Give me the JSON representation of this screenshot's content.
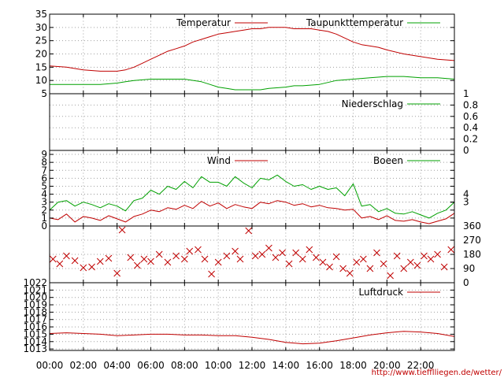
{
  "chart_data": {
    "type": "line",
    "x_ticks": [
      "00:00",
      "02:00",
      "04:00",
      "06:00",
      "08:00",
      "10:00",
      "12:00",
      "14:00",
      "16:00",
      "18:00",
      "20:00",
      "22:00"
    ],
    "credit": "http://www.tiefflliegen.de/wetter/",
    "colors": {
      "red": "#c00000",
      "green": "#00a000",
      "grid": "#a0a0a0"
    },
    "panels": [
      {
        "id": "temperature",
        "y_ticks_left": [
          "5",
          "10",
          "15",
          "20",
          "25",
          "30",
          "35"
        ],
        "ylim": [
          5,
          35
        ],
        "legend": [
          "Temperatur",
          "Taupunkttemperatur"
        ],
        "series": [
          {
            "name": "Temperatur",
            "color": "red",
            "x": [
              0,
              1,
              2,
              3,
              3.5,
              4,
              4.5,
              5,
              5.5,
              6,
              6.5,
              7,
              7.5,
              8,
              8.5,
              9,
              9.5,
              10,
              10.5,
              11,
              11.5,
              12,
              12.5,
              13,
              13.5,
              14,
              14.5,
              15,
              15.5,
              16,
              16.5,
              17,
              17.5,
              18,
              18.5,
              19,
              19.5,
              20,
              21,
              22,
              23,
              24
            ],
            "y": [
              15.5,
              15,
              14,
              13.5,
              13.5,
              13.5,
              14,
              15,
              16.5,
              18,
              19.5,
              21,
              22,
              23,
              24.5,
              25.5,
              26.5,
              27.5,
              28,
              28.5,
              29,
              29.5,
              29.5,
              30,
              30,
              30,
              29.5,
              29.5,
              29.5,
              29,
              28.5,
              27.5,
              26,
              24.5,
              23.5,
              23,
              22.5,
              21.5,
              20,
              19,
              18,
              17.5
            ]
          },
          {
            "name": "Taupunkttemperatur",
            "color": "green",
            "x": [
              0,
              1,
              2,
              3,
              4,
              4.5,
              5,
              6,
              7,
              8,
              9,
              9.5,
              10,
              10.5,
              11,
              11.5,
              12,
              12.5,
              13,
              14,
              14.5,
              15,
              16,
              17,
              18,
              19,
              20,
              21,
              22,
              23,
              24
            ],
            "y": [
              8.5,
              8.5,
              8.5,
              8.5,
              9,
              9.5,
              10,
              10.5,
              10.5,
              10.5,
              9.5,
              8.5,
              7.5,
              7,
              6.5,
              6.5,
              6.5,
              6.5,
              7,
              7.5,
              8,
              8,
              8.5,
              10,
              10.5,
              11,
              11.5,
              11.5,
              11,
              11,
              10.5
            ]
          }
        ]
      },
      {
        "id": "precipitation",
        "y_ticks_right": [
          "0",
          "0.2",
          "0.4",
          "0.6",
          "0.8",
          "1"
        ],
        "ylim": [
          0,
          1
        ],
        "legend": [
          "Niederschlag"
        ],
        "series": [
          {
            "name": "Niederschlag",
            "color": "green",
            "x": [
              0,
              24
            ],
            "y": [
              0,
              0
            ]
          }
        ]
      },
      {
        "id": "wind",
        "y_ticks_left": [
          "0",
          "1",
          "2",
          "3",
          "4",
          "5",
          "6",
          "7",
          "8",
          "9"
        ],
        "y_ticks_right": [
          "3",
          "4"
        ],
        "ylim": [
          0,
          9.5
        ],
        "legend": [
          "Wind",
          "Boeen"
        ],
        "series": [
          {
            "name": "Wind",
            "color": "red",
            "x": [
              0,
              0.5,
              1,
              1.5,
              2,
              2.5,
              3,
              3.5,
              4,
              4.5,
              5,
              5.5,
              6,
              6.5,
              7,
              7.5,
              8,
              8.5,
              9,
              9.5,
              10,
              10.5,
              11,
              11.5,
              12,
              12.5,
              13,
              13.5,
              14,
              14.5,
              15,
              15.5,
              16,
              16.5,
              17,
              17.5,
              18,
              18.5,
              19,
              19.5,
              20,
              20.5,
              21,
              21.5,
              22,
              22.5,
              23,
              23.5,
              24
            ],
            "y": [
              1,
              0.8,
              1.5,
              0.5,
              1.2,
              1,
              0.7,
              1.3,
              0.9,
              0.5,
              1.2,
              1.5,
              2,
              1.8,
              2.3,
              2.1,
              2.6,
              2.2,
              3.1,
              2.5,
              2.9,
              2.2,
              2.7,
              2.4,
              2.2,
              3,
              2.8,
              3.2,
              3,
              2.6,
              2.8,
              2.4,
              2.6,
              2.3,
              2.2,
              2,
              2.1,
              1,
              1.2,
              0.8,
              1.3,
              0.7,
              0.6,
              0.8,
              0.5,
              0.3,
              0.6,
              0.9,
              1.6
            ]
          },
          {
            "name": "Boeen",
            "color": "green",
            "x": [
              0,
              0.5,
              1,
              1.5,
              2,
              2.5,
              3,
              3.5,
              4,
              4.5,
              5,
              5.5,
              6,
              6.5,
              7,
              7.5,
              8,
              8.5,
              9,
              9.5,
              10,
              10.5,
              11,
              11.5,
              12,
              12.5,
              13,
              13.5,
              14,
              14.5,
              15,
              15.5,
              16,
              16.5,
              17,
              17.5,
              18,
              18.5,
              19,
              19.5,
              20,
              20.5,
              21,
              21.5,
              22,
              22.5,
              23,
              23.5,
              24
            ],
            "y": [
              2,
              3,
              3.2,
              2.5,
              3,
              2.7,
              2.3,
              2.8,
              2.5,
              1.9,
              3.2,
              3.5,
              4.5,
              4,
              5,
              4.6,
              5.6,
              4.8,
              6.2,
              5.5,
              5.5,
              5,
              6.2,
              5.4,
              4.8,
              6,
              5.8,
              6.4,
              5.6,
              5,
              5.2,
              4.6,
              5,
              4.6,
              4.8,
              3.8,
              5.3,
              2.5,
              2.7,
              1.8,
              2.2,
              1.6,
              1.5,
              1.8,
              1.4,
              1,
              1.6,
              2,
              3
            ]
          }
        ]
      },
      {
        "id": "wind_direction",
        "y_ticks_right": [
          "0",
          "90",
          "180",
          "270",
          "360"
        ],
        "ylim": [
          0,
          360
        ],
        "series": [
          {
            "name": "",
            "color": "red",
            "type": "scatter",
            "x": [
              0.2,
              0.6,
              1,
              1.5,
              2,
              2.5,
              3,
              3.5,
              4,
              4.3,
              4.8,
              5.2,
              5.6,
              6,
              6.5,
              7,
              7.5,
              8,
              8.3,
              8.8,
              9.2,
              9.6,
              10,
              10.5,
              11,
              11.3,
              11.8,
              12.2,
              12.6,
              13,
              13.4,
              13.8,
              14.2,
              14.6,
              15,
              15.4,
              15.8,
              16.2,
              16.6,
              17,
              17.4,
              17.8,
              18.2,
              18.6,
              19,
              19.4,
              19.8,
              20.2,
              20.6,
              21,
              21.4,
              21.8,
              22.2,
              22.6,
              23,
              23.4,
              23.8
            ],
            "y": [
              150,
              120,
              170,
              140,
              95,
              100,
              135,
              155,
              60,
              335,
              160,
              110,
              150,
              135,
              180,
              130,
              170,
              150,
              200,
              210,
              150,
              55,
              130,
              170,
              200,
              150,
              330,
              170,
              180,
              220,
              160,
              190,
              120,
              190,
              150,
              210,
              160,
              130,
              100,
              165,
              90,
              60,
              130,
              150,
              90,
              190,
              120,
              45,
              170,
              90,
              130,
              110,
              170,
              150,
              180,
              100,
              210
            ]
          }
        ]
      },
      {
        "id": "pressure",
        "y_ticks_left": [
          "1013",
          "1014",
          "1015",
          "1016",
          "1017",
          "1018",
          "1019",
          "1020",
          "1021",
          "1022"
        ],
        "ylim": [
          1012.8,
          1022
        ],
        "legend": [
          "Luftdruck"
        ],
        "series": [
          {
            "name": "Luftdruck",
            "color": "red",
            "x": [
              0,
              1,
              2,
              3,
              4,
              5,
              6,
              7,
              8,
              9,
              10,
              11,
              12,
              13,
              14,
              15,
              16,
              17,
              18,
              19,
              20,
              21,
              22,
              23,
              24
            ],
            "y": [
              1015.1,
              1015.2,
              1015.1,
              1015,
              1014.8,
              1014.9,
              1015,
              1015,
              1014.9,
              1014.9,
              1014.8,
              1014.8,
              1014.6,
              1014.3,
              1013.9,
              1013.7,
              1013.8,
              1014.1,
              1014.5,
              1014.9,
              1015.2,
              1015.4,
              1015.3,
              1015.1,
              1014.7
            ]
          }
        ]
      }
    ]
  }
}
